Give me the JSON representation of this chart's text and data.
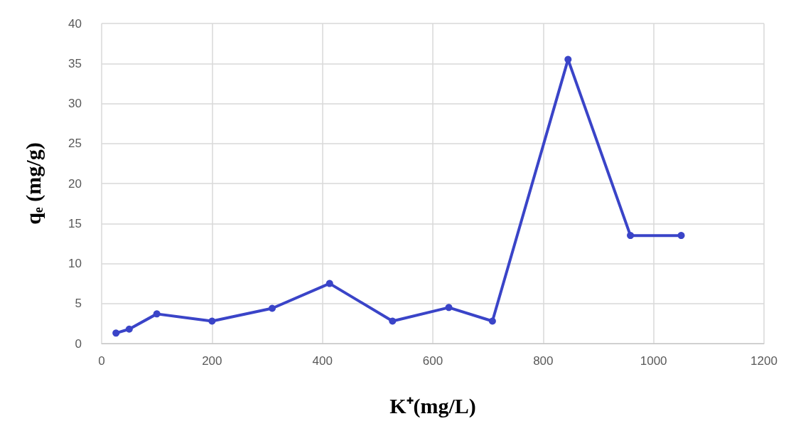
{
  "chart_data": {
    "type": "line",
    "xlabel": "K⁺(mg/L)",
    "ylabel": "qₑ (mg/g)",
    "x": [
      26,
      50,
      100,
      200,
      309,
      413,
      527,
      629,
      708,
      845,
      958,
      1050
    ],
    "series": [
      {
        "color": "#3a44c8",
        "values": [
          1.3,
          1.8,
          3.7,
          2.8,
          4.4,
          7.5,
          2.8,
          4.5,
          2.8,
          35.5,
          13.5,
          13.5
        ]
      }
    ],
    "xlim": [
      0,
      1200
    ],
    "xticks": [
      0,
      200,
      400,
      600,
      800,
      1000,
      1200
    ],
    "ylim": [
      0,
      40
    ],
    "yticks": [
      0,
      5,
      10,
      15,
      20,
      25,
      30,
      35,
      40
    ],
    "grid": true,
    "marker": "circle",
    "line_style": "solid"
  }
}
